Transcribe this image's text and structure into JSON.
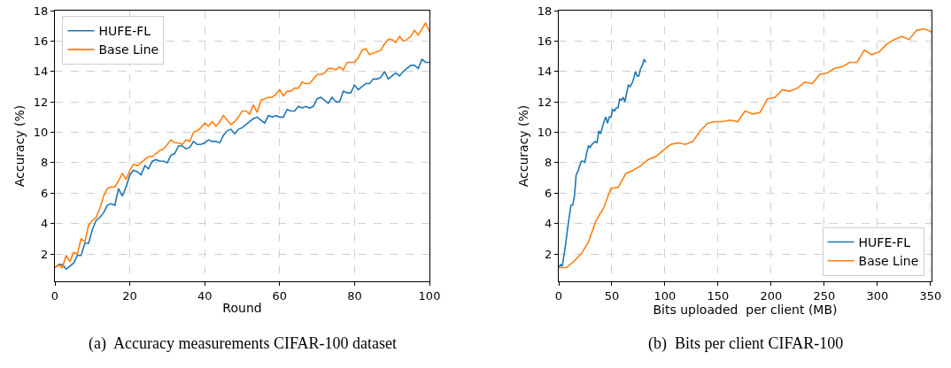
{
  "chart_data": [
    {
      "type": "line",
      "xlabel": "Round",
      "ylabel": "Accuracy (%)",
      "annotations": [
        "(a)  Accuracy measurements CIFAR-100 dataset"
      ],
      "x": [
        0,
        1,
        2,
        3,
        4,
        5,
        6,
        7,
        8,
        9,
        10,
        11,
        12,
        13,
        14,
        15,
        16,
        17,
        18,
        19,
        20,
        21,
        22,
        23,
        24,
        25,
        26,
        27,
        28,
        29,
        30,
        31,
        32,
        33,
        34,
        35,
        36,
        37,
        38,
        39,
        40,
        41,
        42,
        43,
        44,
        45,
        46,
        47,
        48,
        49,
        50,
        51,
        52,
        53,
        54,
        55,
        56,
        57,
        58,
        59,
        60,
        61,
        62,
        63,
        64,
        65,
        66,
        67,
        68,
        69,
        70,
        71,
        72,
        73,
        74,
        75,
        76,
        77,
        78,
        79,
        80,
        81,
        82,
        83,
        84,
        85,
        86,
        87,
        88,
        89,
        90,
        91,
        92,
        93,
        94,
        95,
        96,
        97,
        98,
        99,
        100
      ],
      "series": [
        {
          "name": "HUFE-FL",
          "color": "#1f77b4",
          "values": [
            1.1,
            1.3,
            1.3,
            1.0,
            1.2,
            1.4,
            1.9,
            1.9,
            2.7,
            2.7,
            3.6,
            4.2,
            4.4,
            4.7,
            5.2,
            5.3,
            5.2,
            6.3,
            5.8,
            6.4,
            7.2,
            7.5,
            7.4,
            7.2,
            7.8,
            7.6,
            8.1,
            8.2,
            8.1,
            8.1,
            8.0,
            8.5,
            8.6,
            9.1,
            9.1,
            8.9,
            9.0,
            9.4,
            9.2,
            9.2,
            9.3,
            9.5,
            9.4,
            9.4,
            9.3,
            9.8,
            10.1,
            10.2,
            9.9,
            10.2,
            10.3,
            10.5,
            10.7,
            10.9,
            11.0,
            10.8,
            10.6,
            11.1,
            11.0,
            11.1,
            11.0,
            11.0,
            11.5,
            11.4,
            11.4,
            11.7,
            11.6,
            11.7,
            11.6,
            11.7,
            12.2,
            12.3,
            12.1,
            11.9,
            12.3,
            12.0,
            12.0,
            12.7,
            12.6,
            12.6,
            13.1,
            12.8,
            13.0,
            13.2,
            13.2,
            13.5,
            13.5,
            13.6,
            14.0,
            13.5,
            13.7,
            13.9,
            13.7,
            14.0,
            14.2,
            14.4,
            14.4,
            14.2,
            14.8,
            14.6,
            14.6
          ]
        },
        {
          "name": "Base Line",
          "color": "#ff7f0e",
          "values": [
            1.1,
            1.3,
            1.1,
            1.9,
            1.5,
            2.1,
            2.0,
            3.0,
            2.8,
            3.9,
            4.2,
            4.4,
            5.0,
            5.8,
            6.3,
            6.4,
            6.4,
            6.8,
            7.3,
            6.9,
            7.5,
            7.9,
            7.8,
            8.0,
            8.2,
            8.4,
            8.4,
            8.6,
            8.8,
            8.9,
            9.2,
            9.5,
            9.3,
            9.3,
            9.2,
            9.5,
            9.4,
            10.0,
            10.1,
            10.3,
            10.6,
            10.4,
            10.7,
            10.4,
            10.7,
            11.1,
            10.8,
            10.5,
            10.7,
            11.0,
            11.4,
            11.4,
            11.2,
            11.8,
            11.3,
            12.1,
            12.2,
            12.3,
            12.3,
            12.5,
            12.8,
            12.4,
            12.7,
            12.7,
            12.9,
            12.9,
            13.3,
            13.2,
            13.2,
            13.5,
            13.8,
            13.8,
            13.9,
            14.2,
            14.2,
            14.1,
            14.3,
            14.1,
            14.6,
            14.6,
            14.6,
            14.9,
            15.4,
            15.5,
            15.1,
            15.2,
            15.3,
            15.4,
            15.8,
            16.1,
            16.1,
            15.9,
            16.3,
            16.0,
            16.1,
            16.3,
            16.7,
            16.4,
            16.8,
            17.2,
            16.6
          ]
        }
      ],
      "xlim": [
        0,
        100
      ],
      "xticks": [
        0,
        20,
        40,
        60,
        80,
        100
      ],
      "ylim": [
        0.2,
        18
      ],
      "yticks": [
        2,
        4,
        6,
        8,
        10,
        12,
        14,
        16,
        18
      ],
      "grid": true,
      "legend": "top left",
      "marker": "none",
      "line_style": "solid"
    },
    {
      "type": "line",
      "xlabel": "Bits uploaded  per client (MB)",
      "ylabel": "Accuracy (%)",
      "annotations": [
        "(b)  Bits per client CIFAR-100"
      ],
      "series": [
        {
          "name": "HUFE-FL",
          "color": "#1f77b4",
          "x": [
            0,
            1.6,
            3.3,
            4.9,
            6.6,
            8.2,
            9.8,
            11.5,
            13.1,
            14.8,
            16.4,
            18.0,
            19.7,
            21.3,
            23.0,
            24.6,
            26.2,
            27.9,
            29.5,
            31.2,
            32.8,
            34.4,
            36.1,
            37.7,
            39.4,
            41.0,
            42.6,
            44.3,
            45.9,
            47.6,
            49.2,
            50.8,
            52.5,
            54.1,
            55.8,
            57.4,
            59.0,
            60.7,
            62.3,
            64.0,
            65.6,
            67.2,
            68.9,
            70.5,
            72.2,
            73.8,
            75.4,
            77.1,
            78.7,
            80.4,
            82.0
          ],
          "values": [
            1.1,
            1.3,
            1.2,
            1.9,
            2.7,
            3.6,
            4.4,
            5.2,
            5.2,
            5.8,
            7.2,
            7.4,
            7.8,
            8.1,
            8.1,
            8.0,
            8.6,
            9.1,
            9.0,
            9.2,
            9.3,
            9.4,
            9.3,
            10.1,
            9.9,
            10.3,
            10.7,
            11.0,
            10.6,
            11.0,
            11.0,
            11.5,
            11.4,
            11.6,
            11.6,
            12.2,
            12.1,
            12.3,
            12.0,
            12.6,
            13.1,
            13.0,
            13.2,
            13.5,
            14.0,
            13.7,
            13.7,
            14.2,
            14.4,
            14.8,
            14.6
          ]
        },
        {
          "name": "Base Line",
          "color": "#ff7f0e",
          "x": [
            0,
            7.0,
            14.0,
            21.1,
            28.1,
            35.1,
            42.1,
            49.1,
            56.2,
            63.2,
            70.2,
            77.2,
            84.2,
            91.3,
            98.3,
            105.3,
            112.3,
            119.3,
            126.4,
            133.4,
            140.4,
            147.4,
            154.4,
            161.5,
            168.5,
            175.5,
            182.5,
            189.5,
            196.6,
            203.6,
            210.6,
            217.6,
            224.6,
            231.7,
            238.7,
            245.7,
            252.7,
            259.7,
            266.8,
            273.8,
            280.8,
            287.8,
            294.8,
            301.9,
            308.9,
            315.9,
            322.9,
            329.9,
            337.0,
            344.0,
            351.0
          ],
          "values": [
            1.1,
            1.1,
            1.5,
            2.0,
            2.8,
            4.2,
            5.0,
            6.3,
            6.4,
            7.3,
            7.5,
            7.8,
            8.2,
            8.4,
            8.8,
            9.2,
            9.3,
            9.2,
            9.4,
            10.1,
            10.6,
            10.7,
            10.7,
            10.8,
            10.7,
            11.4,
            11.2,
            11.3,
            12.2,
            12.3,
            12.8,
            12.7,
            12.9,
            13.3,
            13.2,
            13.8,
            13.9,
            14.2,
            14.3,
            14.6,
            14.6,
            15.4,
            15.1,
            15.3,
            15.8,
            16.1,
            16.3,
            16.1,
            16.7,
            16.8,
            16.6
          ]
        }
      ],
      "xlim": [
        0,
        351
      ],
      "xticks": [
        0,
        50,
        100,
        150,
        200,
        250,
        300,
        350
      ],
      "ylim": [
        0.2,
        18
      ],
      "yticks": [
        2,
        4,
        6,
        8,
        10,
        12,
        14,
        16,
        18
      ],
      "grid": true,
      "legend": "bottom right",
      "marker": "none",
      "line_style": "solid"
    }
  ]
}
